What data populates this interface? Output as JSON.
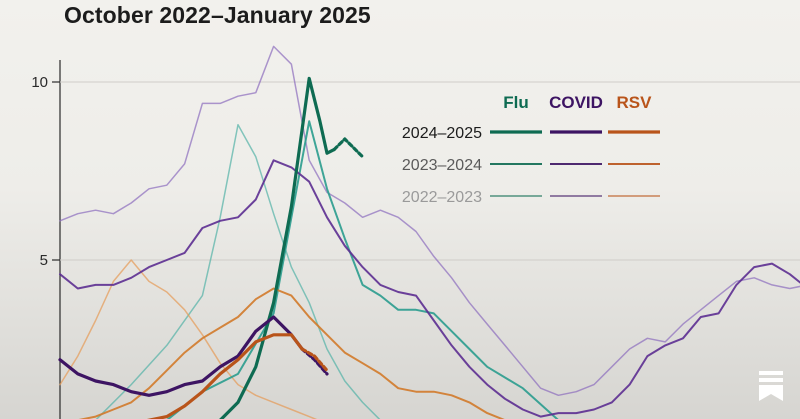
{
  "chart_data": {
    "type": "line",
    "title": "October 2022–January 2025",
    "xlabel": "",
    "ylabel": "",
    "ylim": [
      0,
      10
    ],
    "yticks": [
      10,
      5
    ],
    "x_unit": "weeks since start of season (October 1)",
    "columns": [
      {
        "label": "Flu",
        "color": "#0e6b52"
      },
      {
        "label": "COVID",
        "color": "#3d1463"
      },
      {
        "label": "RSV",
        "color": "#b9541a"
      }
    ],
    "seasons": [
      {
        "label": "2024–2025",
        "color": "#1c1c1c",
        "width": 3.2,
        "opacity": 1.0
      },
      {
        "label": "2023–2024",
        "color": "#5a5a5a",
        "width": 2.0,
        "opacity": 0.9
      },
      {
        "label": "2022–2023",
        "color": "#9a9a9a",
        "width": 1.5,
        "opacity": 0.7
      }
    ],
    "series": [
      {
        "name": "Flu 2022–2023",
        "disease": "Flu",
        "season": 2,
        "color": "#52b2a6",
        "x": [
          0,
          2,
          4,
          6,
          8,
          9,
          10,
          11,
          12,
          13,
          14,
          15,
          16,
          17,
          18,
          19,
          20
        ],
        "y": [
          0.1,
          0.5,
          1.5,
          2.6,
          4.0,
          6.2,
          8.8,
          7.9,
          6.3,
          4.8,
          3.8,
          2.5,
          1.6,
          1.0,
          0.5,
          0.2,
          0.0
        ]
      },
      {
        "name": "Flu 2023–2024",
        "disease": "Flu",
        "season": 1,
        "color": "#2a9c8e",
        "x": [
          0,
          4,
          6,
          8,
          10,
          12,
          13,
          14,
          15,
          16,
          17,
          18,
          19,
          20,
          21,
          22,
          23,
          24,
          26,
          28,
          30
        ],
        "y": [
          0.1,
          0.2,
          0.5,
          1.3,
          1.8,
          3.5,
          6.2,
          8.9,
          7.0,
          5.6,
          4.3,
          4.0,
          3.6,
          3.6,
          3.5,
          3.0,
          2.5,
          2.0,
          1.4,
          0.5,
          0.1
        ]
      },
      {
        "name": "Flu 2024–2025",
        "disease": "Flu",
        "season": 0,
        "color": "#0e6b52",
        "x": [
          4,
          6,
          8,
          9,
          10,
          11,
          12,
          13,
          14,
          14.6,
          15,
          15.4
        ],
        "y": [
          0.0,
          0.1,
          0.3,
          0.5,
          1.0,
          2.0,
          3.8,
          6.5,
          10.1,
          8.9,
          8.0,
          8.1
        ]
      },
      {
        "name": "Flu 2024–2025 (preliminary)",
        "disease": "Flu",
        "season": 0,
        "color": "#0e6b52",
        "dashed": true,
        "x": [
          15.4,
          16,
          17.0
        ],
        "y": [
          8.1,
          8.4,
          7.9
        ]
      },
      {
        "name": "COVID 2022–2023",
        "disease": "COVID",
        "season": 2,
        "color": "#8c6cbd",
        "x": [
          0,
          1,
          2,
          3,
          4,
          5,
          6,
          7,
          8,
          9,
          10,
          11,
          12,
          13,
          14,
          15,
          16,
          17,
          18,
          19,
          20,
          21,
          22,
          23,
          24,
          25,
          26,
          27,
          28,
          29,
          30,
          31,
          32,
          33,
          34,
          35,
          36,
          37,
          38,
          39,
          40,
          41,
          42,
          43,
          44
        ],
        "y": [
          6.1,
          6.3,
          6.4,
          6.3,
          6.6,
          7.0,
          7.1,
          7.7,
          9.4,
          9.4,
          9.6,
          9.7,
          11.0,
          10.5,
          7.8,
          6.9,
          6.6,
          6.2,
          6.4,
          6.2,
          5.8,
          5.1,
          4.5,
          3.8,
          3.2,
          2.6,
          2.0,
          1.4,
          1.2,
          1.3,
          1.5,
          2.0,
          2.5,
          2.8,
          2.7,
          3.2,
          3.6,
          4.0,
          4.4,
          4.5,
          4.3,
          4.2,
          4.3,
          4.4,
          4.6
        ]
      },
      {
        "name": "COVID 2023–2024",
        "disease": "COVID",
        "season": 1,
        "color": "#5c2d91",
        "x": [
          0,
          1,
          2,
          3,
          4,
          5,
          6,
          7,
          8,
          9,
          10,
          11,
          12,
          13,
          14,
          15,
          16,
          17,
          18,
          19,
          20,
          21,
          22,
          23,
          24,
          25,
          26,
          27,
          28,
          29,
          30,
          31,
          32,
          33,
          34,
          35,
          36,
          37,
          38,
          39,
          40,
          41,
          42,
          43,
          44
        ],
        "y": [
          4.6,
          4.2,
          4.3,
          4.3,
          4.5,
          4.8,
          5.0,
          5.2,
          5.9,
          6.1,
          6.2,
          6.7,
          7.8,
          7.6,
          7.2,
          6.2,
          5.4,
          4.8,
          4.3,
          4.1,
          4.0,
          3.3,
          2.6,
          2.0,
          1.5,
          1.1,
          0.8,
          0.6,
          0.7,
          0.7,
          0.8,
          1.0,
          1.5,
          2.3,
          2.6,
          2.8,
          3.4,
          3.5,
          4.3,
          4.8,
          4.9,
          4.6,
          4.2,
          3.8,
          3.3
        ]
      },
      {
        "name": "COVID 2024–2025",
        "disease": "COVID",
        "season": 0,
        "color": "#3d1463",
        "x": [
          0,
          1,
          2,
          3,
          4,
          5,
          6,
          7,
          8,
          9,
          10,
          11,
          12,
          13,
          13.6
        ],
        "y": [
          2.2,
          1.8,
          1.6,
          1.5,
          1.3,
          1.2,
          1.3,
          1.5,
          1.6,
          2.0,
          2.3,
          3.0,
          3.4,
          2.9,
          2.5
        ]
      },
      {
        "name": "COVID 2024–2025 (preliminary)",
        "disease": "COVID",
        "season": 0,
        "color": "#3d1463",
        "dashed": true,
        "x": [
          13.6,
          14.3,
          15.0
        ],
        "y": [
          2.5,
          2.2,
          1.8
        ]
      },
      {
        "name": "RSV 2022–2023",
        "disease": "RSV",
        "season": 2,
        "color": "#e59a55",
        "x": [
          0,
          1,
          2,
          3,
          4,
          5,
          6,
          7,
          8,
          9,
          10,
          11,
          12,
          13,
          14,
          15,
          16,
          17,
          18
        ],
        "y": [
          1.5,
          2.3,
          3.3,
          4.4,
          5.0,
          4.4,
          4.1,
          3.6,
          2.9,
          2.1,
          1.5,
          1.2,
          1.0,
          0.8,
          0.6,
          0.4,
          0.3,
          0.2,
          0.1
        ]
      },
      {
        "name": "RSV 2023–2024",
        "disease": "RSV",
        "season": 1,
        "color": "#d27a2a",
        "x": [
          0,
          1,
          2,
          3,
          4,
          5,
          6,
          7,
          8,
          9,
          10,
          11,
          12,
          13,
          14,
          15,
          16,
          17,
          18,
          19,
          20,
          21,
          22,
          23,
          24,
          25,
          26,
          27,
          28
        ],
        "y": [
          0.2,
          0.5,
          0.6,
          0.8,
          1.0,
          1.4,
          1.9,
          2.4,
          2.8,
          3.1,
          3.4,
          3.9,
          4.2,
          4.0,
          3.4,
          2.9,
          2.4,
          2.1,
          1.8,
          1.4,
          1.3,
          1.3,
          1.2,
          1.0,
          0.7,
          0.5,
          0.3,
          0.2,
          0.1
        ]
      },
      {
        "name": "RSV 2024–2025",
        "disease": "RSV",
        "season": 0,
        "color": "#b9541a",
        "x": [
          0,
          1,
          2,
          3,
          4,
          5,
          6,
          7,
          8,
          9,
          10,
          11,
          12,
          13,
          13.6
        ],
        "y": [
          0.0,
          0.0,
          0.1,
          0.2,
          0.4,
          0.5,
          0.6,
          0.9,
          1.3,
          1.8,
          2.2,
          2.7,
          2.9,
          2.9,
          2.5
        ]
      },
      {
        "name": "RSV 2024–2025 (preliminary)",
        "disease": "RSV",
        "season": 0,
        "color": "#b9541a",
        "dashed": true,
        "x": [
          13.6,
          14.3,
          15.0
        ],
        "y": [
          2.5,
          2.3,
          1.9
        ]
      }
    ]
  },
  "bookmark_icon": "bookmark-icon"
}
